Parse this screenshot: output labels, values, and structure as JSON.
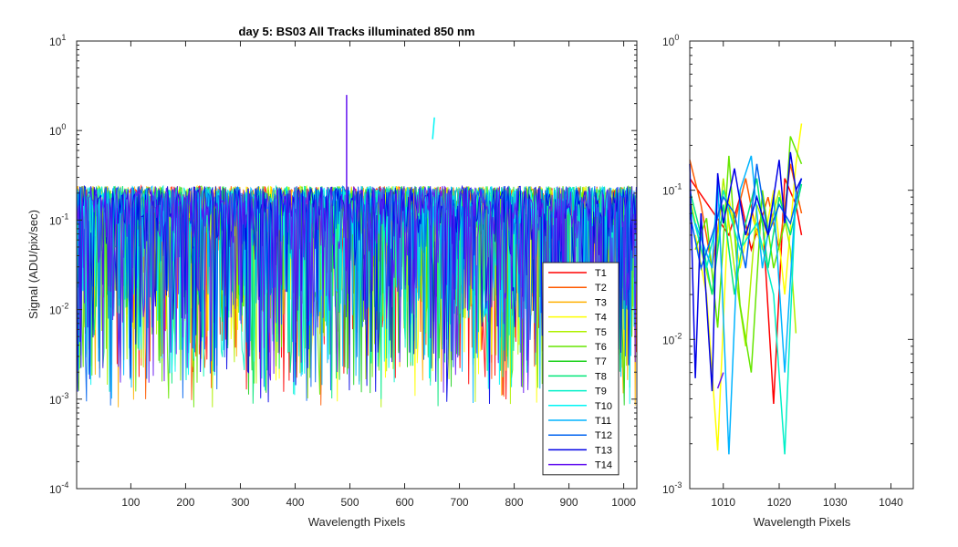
{
  "chart_data": [
    {
      "type": "line",
      "title": "day 5: BS03   All Tracks illuminated   850 nm",
      "xlabel": "Wavelength Pixels",
      "ylabel": "Signal (ADU/pix/sec)",
      "xlim": [
        1,
        1024
      ],
      "ylim": [
        0.0001,
        10
      ],
      "yscale": "log",
      "xticks": [
        100,
        200,
        300,
        400,
        500,
        600,
        700,
        800,
        900,
        1000
      ],
      "ytick_labels": [
        {
          "base": "10",
          "exp": "1"
        },
        {
          "base": "10",
          "exp": "0"
        },
        {
          "base": "10",
          "exp": "-1"
        },
        {
          "base": "10",
          "exp": "-2"
        },
        {
          "base": "10",
          "exp": "-3"
        },
        {
          "base": "10",
          "exp": "-4"
        }
      ],
      "legend_location": "bottom-right",
      "series": [
        {
          "name": "T1",
          "color": "#ff0000"
        },
        {
          "name": "T2",
          "color": "#ff5a00"
        },
        {
          "name": "T3",
          "color": "#ffb000"
        },
        {
          "name": "T4",
          "color": "#ffff00"
        },
        {
          "name": "T5",
          "color": "#b0f000"
        },
        {
          "name": "T6",
          "color": "#66e600"
        },
        {
          "name": "T7",
          "color": "#1ed21e"
        },
        {
          "name": "T8",
          "color": "#00e678"
        },
        {
          "name": "T9",
          "color": "#00f0c8"
        },
        {
          "name": "T10",
          "color": "#00f5f5"
        },
        {
          "name": "T11",
          "color": "#00b4ff"
        },
        {
          "name": "T12",
          "color": "#0064f0"
        },
        {
          "name": "T13",
          "color": "#0000e6"
        },
        {
          "name": "T14",
          "color": "#6414f0"
        }
      ],
      "annotations": [
        {
          "series": "T14",
          "x": 494,
          "y": 2.5,
          "description": "spike"
        },
        {
          "series": "T10",
          "x": 651,
          "y": 1.4,
          "description": "short segment"
        }
      ]
    },
    {
      "type": "line",
      "xlabel": "Wavelength Pixels",
      "xlim": [
        1004,
        1044
      ],
      "ylim": [
        0.001,
        1
      ],
      "yscale": "log",
      "xticks": [
        1010,
        1020,
        1030,
        1040
      ],
      "ytick_labels": [
        {
          "base": "10",
          "exp": "0"
        },
        {
          "base": "10",
          "exp": "-1"
        },
        {
          "base": "10",
          "exp": "-2"
        },
        {
          "base": "10",
          "exp": "-3"
        }
      ],
      "series": [
        {
          "name": "T1",
          "x": [
            1004,
            1011,
            1013,
            1015,
            1017,
            1019,
            1021,
            1023,
            1024
          ],
          "y": [
            0.12,
            0.05,
            0.09,
            0.04,
            0.07,
            0.0037,
            0.12,
            0.08,
            0.05
          ]
        },
        {
          "name": "T2",
          "x": [
            1004,
            1006,
            1008,
            1010,
            1012,
            1014,
            1016,
            1018,
            1020,
            1022,
            1024
          ],
          "y": [
            0.16,
            0.08,
            0.03,
            0.1,
            0.06,
            0.12,
            0.05,
            0.09,
            0.04,
            0.15,
            0.07
          ]
        },
        {
          "name": "T4",
          "x": [
            1005,
            1007,
            1009,
            1011,
            1013,
            1015,
            1017,
            1019,
            1021,
            1023,
            1024
          ],
          "y": [
            0.05,
            0.02,
            0.0018,
            0.09,
            0.03,
            0.07,
            0.04,
            0.1,
            0.02,
            0.15,
            0.28
          ]
        },
        {
          "name": "T5",
          "x": [
            1004,
            1006,
            1008,
            1010,
            1012,
            1014,
            1016,
            1018,
            1020,
            1022,
            1023
          ],
          "y": [
            0.09,
            0.04,
            0.02,
            0.12,
            0.03,
            0.009,
            0.08,
            0.05,
            0.1,
            0.04,
            0.011
          ]
        },
        {
          "name": "T6",
          "x": [
            1005,
            1007,
            1009,
            1011,
            1013,
            1015,
            1017,
            1019,
            1021,
            1022,
            1024
          ],
          "y": [
            0.04,
            0.065,
            0.012,
            0.17,
            0.017,
            0.006,
            0.1,
            0.03,
            0.06,
            0.23,
            0.15
          ]
        },
        {
          "name": "T8",
          "x": [
            1004,
            1006,
            1008,
            1010,
            1012,
            1014,
            1016,
            1018,
            1020,
            1022,
            1024
          ],
          "y": [
            0.1,
            0.05,
            0.02,
            0.08,
            0.02,
            0.06,
            0.12,
            0.03,
            0.09,
            0.05,
            0.11
          ]
        },
        {
          "name": "T9",
          "x": [
            1004,
            1007,
            1010,
            1013,
            1016,
            1019,
            1021,
            1023
          ],
          "y": [
            0.08,
            0.03,
            0.1,
            0.04,
            0.06,
            0.02,
            0.0017,
            0.1
          ]
        },
        {
          "name": "T11",
          "x": [
            1005,
            1008,
            1009,
            1011,
            1013,
            1015,
            1017,
            1019,
            1021,
            1023
          ],
          "y": [
            0.06,
            0.03,
            0.12,
            0.0017,
            0.1,
            0.17,
            0.03,
            0.09,
            0.006,
            0.1
          ]
        },
        {
          "name": "T12",
          "x": [
            1004,
            1006,
            1008,
            1010,
            1012,
            1014,
            1016,
            1018,
            1020,
            1022,
            1024
          ],
          "y": [
            0.07,
            0.03,
            0.05,
            0.09,
            0.07,
            0.03,
            0.15,
            0.05,
            0.08,
            0.06,
            0.12
          ]
        },
        {
          "name": "T13",
          "x": [
            1004,
            1005,
            1006,
            1008,
            1009,
            1010,
            1012,
            1014,
            1016,
            1018,
            1020,
            1021,
            1022,
            1023,
            1024
          ],
          "y": [
            0.15,
            0.0055,
            0.07,
            0.0045,
            0.13,
            0.06,
            0.14,
            0.05,
            0.09,
            0.05,
            0.16,
            0.06,
            0.18,
            0.1,
            0.12
          ]
        },
        {
          "name": "T14",
          "x": [
            1009,
            1010
          ],
          "y": [
            0.0047,
            0.006
          ]
        }
      ]
    }
  ]
}
